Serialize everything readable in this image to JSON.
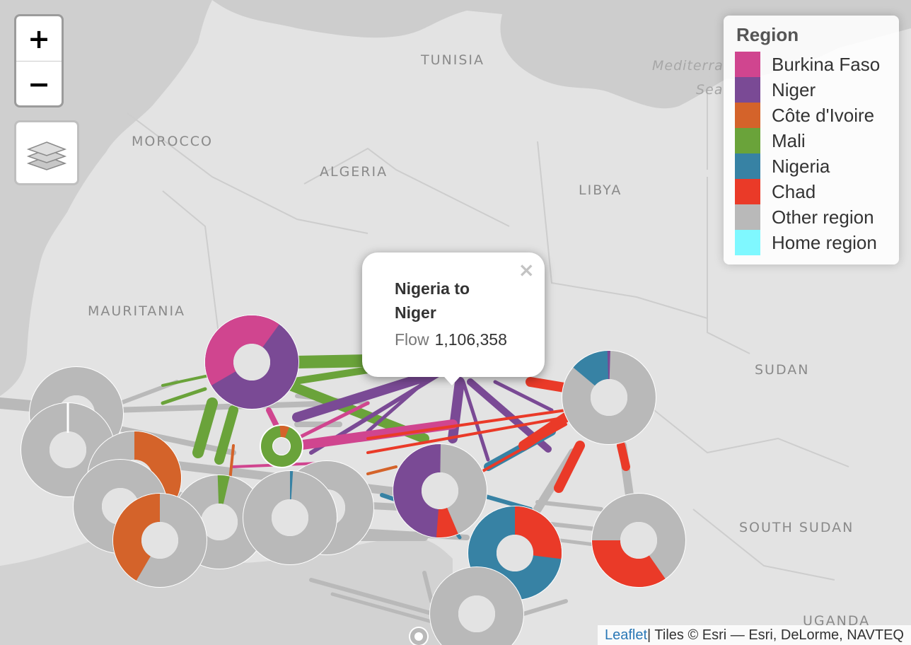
{
  "country_labels": {
    "tunisia": "TUNISIA",
    "morocco": "MOROCCO",
    "algeria": "ALGERIA",
    "libya": "LIBYA",
    "mauritania": "MAURITANIA",
    "sudan": "SUDAN",
    "south_sudan": "SOUTH SUDAN",
    "uganda": "UGANDA",
    "mediterranean_1": "Mediterra",
    "mediterranean_2": "Sea"
  },
  "zoom": {
    "in_label": "+",
    "out_label": "−"
  },
  "layers_icon": "layers-icon",
  "legend": {
    "title": "Region",
    "items": [
      {
        "label": "Burkina Faso",
        "color": "#d0458f"
      },
      {
        "label": "Niger",
        "color": "#7a4a95"
      },
      {
        "label": "Côte d'Ivoire",
        "color": "#d4632a"
      },
      {
        "label": "Mali",
        "color": "#6aa33a"
      },
      {
        "label": "Nigeria",
        "color": "#3782a4"
      },
      {
        "label": "Chad",
        "color": "#ea3a28"
      },
      {
        "label": "Other region",
        "color": "#b9b9b9"
      },
      {
        "label": "Home region",
        "color": "#7ff8ff"
      }
    ]
  },
  "popup": {
    "close": "×",
    "title": "Nigeria to Niger",
    "flow_key": "Flow",
    "flow_value": "1,106,358"
  },
  "attribution": {
    "link": "Leaflet",
    "text": " | Tiles © Esri — Esri, DeLorme, NAVTEQ"
  }
}
